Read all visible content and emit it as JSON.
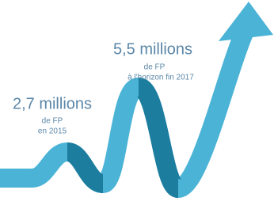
{
  "labels": [
    {
      "value": "5,5 millions",
      "unit": "de FP",
      "period": "à l'horizon fin 2017"
    },
    {
      "value": "2,7 millions",
      "unit": "de FP",
      "period": "en 2015"
    }
  ]
}
